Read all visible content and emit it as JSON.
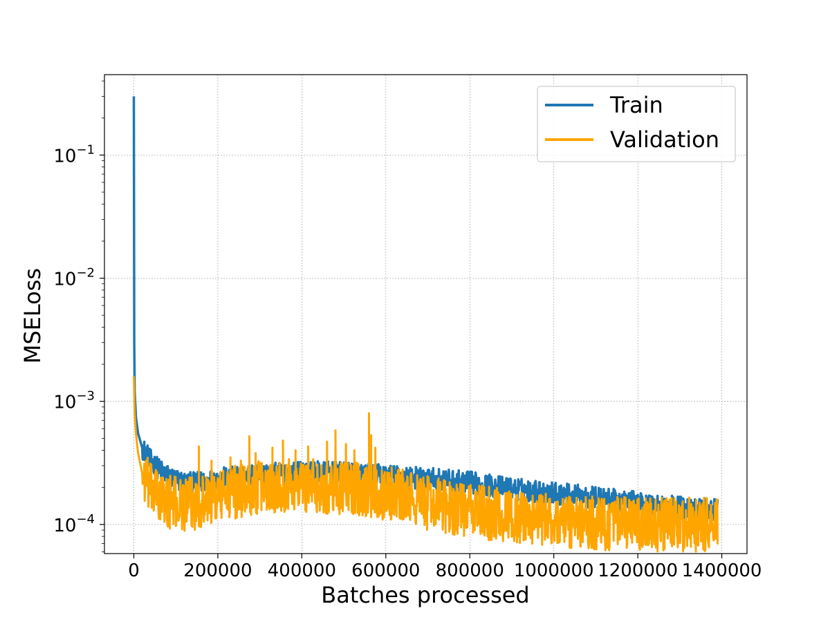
{
  "chart_data": {
    "type": "line",
    "xlabel": "Batches processed",
    "ylabel": "MSELoss",
    "xlim": [
      -70000,
      1460000
    ],
    "ylim": [
      5.8e-05,
      0.45
    ],
    "yscale": "log",
    "grid": true,
    "legend_position": "top-right",
    "xticks": [
      0,
      200000,
      400000,
      600000,
      800000,
      1000000,
      1200000,
      1400000
    ],
    "xtick_labels": [
      "0",
      "200000",
      "400000",
      "600000",
      "800000",
      "1000000",
      "1200000",
      "1400000"
    ],
    "yticks": [
      0.0001,
      0.001,
      0.01,
      0.1
    ],
    "ytick_labels": [
      {
        "base": "10",
        "exp": "−4"
      },
      {
        "base": "10",
        "exp": "−3"
      },
      {
        "base": "10",
        "exp": "−2"
      },
      {
        "base": "10",
        "exp": "−1"
      }
    ],
    "series": [
      {
        "name": "Train",
        "color": "#1f77b4",
        "noise": 0.09,
        "x": [
          0,
          1000,
          2000,
          5000,
          10000,
          20000,
          40000,
          60000,
          80000,
          100000,
          130000,
          160000,
          200000,
          260000,
          300000,
          360000,
          400000,
          460000,
          500000,
          560000,
          600000,
          700000,
          800000,
          900000,
          1000000,
          1100000,
          1200000,
          1300000,
          1390000
        ],
        "y": [
          0.3,
          0.003,
          0.0012,
          0.00075,
          0.00055,
          0.00042,
          0.00033,
          0.00028,
          0.00025,
          0.00023,
          0.000215,
          0.00022,
          0.000235,
          0.000245,
          0.000255,
          0.00026,
          0.000265,
          0.000265,
          0.00026,
          0.000255,
          0.00025,
          0.000235,
          0.00022,
          0.000195,
          0.00018,
          0.000165,
          0.00015,
          0.000138,
          0.00013
        ]
      },
      {
        "name": "Validation",
        "color": "#ffa500",
        "noise": 0.22,
        "x": [
          0,
          2000,
          5000,
          10000,
          20000,
          40000,
          60000,
          80000,
          100000,
          130000,
          160000,
          200000,
          260000,
          300000,
          360000,
          400000,
          460000,
          500000,
          560000,
          600000,
          700000,
          800000,
          900000,
          1000000,
          1100000,
          1200000,
          1300000,
          1390000
        ],
        "y": [
          0.0016,
          0.0008,
          0.00055,
          0.00038,
          0.00026,
          0.00019,
          0.000165,
          0.000155,
          0.00015,
          0.000145,
          0.000155,
          0.00017,
          0.00019,
          0.0002,
          0.00021,
          0.00021,
          0.0002,
          0.0002,
          0.00019,
          0.00018,
          0.00015,
          0.00013,
          0.000115,
          0.000108,
          0.000103,
          0.0001,
          0.0001,
          9.9e-05
        ]
      }
    ],
    "spikes": [
      {
        "series": "Validation",
        "x": 155000,
        "y": 0.00043
      },
      {
        "series": "Validation",
        "x": 185000,
        "y": 0.00033
      },
      {
        "series": "Validation",
        "x": 230000,
        "y": 0.00035
      },
      {
        "series": "Validation",
        "x": 255000,
        "y": 0.00033
      },
      {
        "series": "Validation",
        "x": 275000,
        "y": 0.00052
      },
      {
        "series": "Validation",
        "x": 290000,
        "y": 0.00038
      },
      {
        "series": "Validation",
        "x": 330000,
        "y": 0.00042
      },
      {
        "series": "Validation",
        "x": 355000,
        "y": 0.00048
      },
      {
        "series": "Validation",
        "x": 385000,
        "y": 0.0004
      },
      {
        "series": "Validation",
        "x": 415000,
        "y": 0.00043
      },
      {
        "series": "Validation",
        "x": 460000,
        "y": 0.00047
      },
      {
        "series": "Validation",
        "x": 480000,
        "y": 0.00058
      },
      {
        "series": "Validation",
        "x": 505000,
        "y": 0.00045
      },
      {
        "series": "Validation",
        "x": 525000,
        "y": 0.0004
      },
      {
        "series": "Validation",
        "x": 560000,
        "y": 0.0008
      },
      {
        "series": "Validation",
        "x": 565000,
        "y": 0.00053
      },
      {
        "series": "Validation",
        "x": 575000,
        "y": 0.00042
      },
      {
        "series": "Validation",
        "x": 640000,
        "y": 0.00028
      },
      {
        "series": "Validation",
        "x": 730000,
        "y": 0.00022
      },
      {
        "series": "Validation",
        "x": 890000,
        "y": 0.00018
      }
    ]
  }
}
